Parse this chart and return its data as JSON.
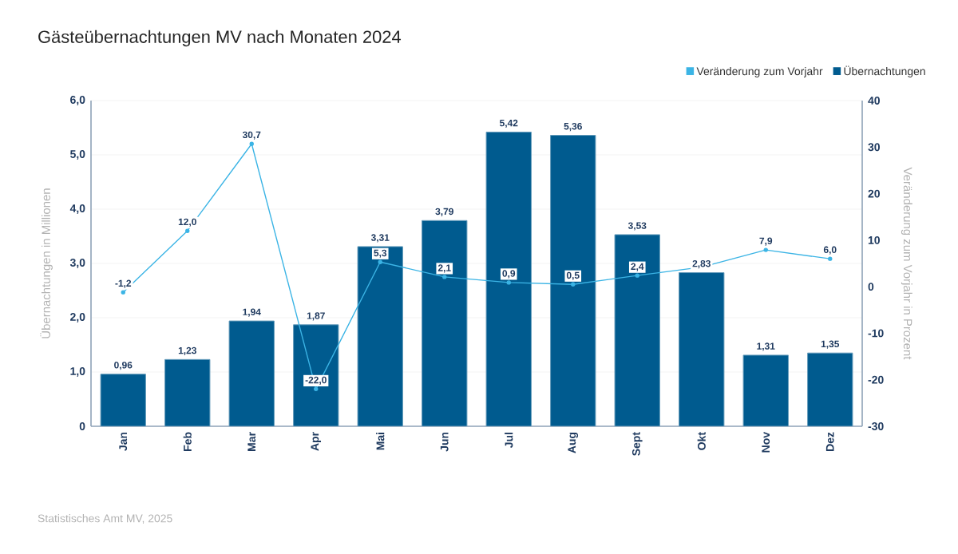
{
  "chart_data": {
    "type": "bar",
    "title": "Gästeübernachtungen MV nach Monaten 2024",
    "categories": [
      "Jan",
      "Feb",
      "Mar",
      "Apr",
      "Mai",
      "Jun",
      "Jul",
      "Aug",
      "Sept",
      "Okt",
      "Nov",
      "Dez"
    ],
    "series": [
      {
        "name": "Veränderung zum Vorjahr",
        "type": "line",
        "axis": "y2",
        "color": "#3bb4e5",
        "values": [
          -1.2,
          12.0,
          30.7,
          -22.0,
          5.3,
          2.1,
          0.9,
          0.5,
          2.4,
          4.2,
          7.9,
          6.0
        ],
        "value_labels": [
          "-1,2",
          "12,0",
          "30,7",
          "-22,0",
          "5,3",
          "2,1",
          "0,9",
          "0,5",
          "2,4",
          null,
          "7,9",
          "6,0"
        ]
      },
      {
        "name": "Übernachtungen",
        "color": "#005b8f",
        "values": [
          0.96,
          1.23,
          1.94,
          1.87,
          3.31,
          3.79,
          5.42,
          5.36,
          3.53,
          2.83,
          1.31,
          1.35
        ],
        "value_labels": [
          "0,96",
          "1,23",
          "1,94",
          "1,87",
          "3,31",
          "3,79",
          "5,42",
          "5,36",
          "3,53",
          "2,83",
          "1,31",
          "1,35"
        ]
      }
    ],
    "ylabel": "Übernachtungen in Millionen",
    "y2label": "Veränderung zum Vorjahr in Prozent",
    "ylim": [
      0,
      6
    ],
    "yticks": [
      {
        "value": 0,
        "label": "0"
      },
      {
        "value": 1,
        "label": "1,0"
      },
      {
        "value": 2,
        "label": "2,0"
      },
      {
        "value": 3,
        "label": "3,0"
      },
      {
        "value": 4,
        "label": "4,0"
      },
      {
        "value": 5,
        "label": "5,0"
      },
      {
        "value": 6,
        "label": "6,0"
      }
    ],
    "y2lim": [
      -30,
      40
    ],
    "y2ticks": [
      -30,
      -20,
      -10,
      0,
      10,
      20,
      30,
      40
    ],
    "grid": "y",
    "legend": "top right",
    "marker": "circle",
    "annotations": [
      "Statistisches Amt MV, 2025"
    ]
  }
}
